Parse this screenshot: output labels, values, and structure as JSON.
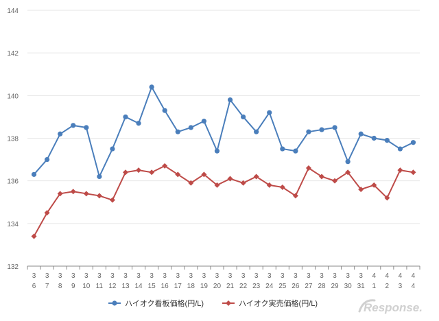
{
  "chart_data": {
    "type": "line",
    "title": "",
    "xlabel": "",
    "ylabel": "",
    "ylim": [
      132,
      144
    ],
    "yticks": [
      "132",
      "134",
      "136",
      "138",
      "140",
      "142",
      "144"
    ],
    "grid": "horizontal",
    "legend_position": "bottom",
    "categories": [
      {
        "month": "3",
        "day": "6"
      },
      {
        "month": "3",
        "day": "7"
      },
      {
        "month": "3",
        "day": "8"
      },
      {
        "month": "3",
        "day": "9"
      },
      {
        "month": "3",
        "day": "10"
      },
      {
        "month": "3",
        "day": "11"
      },
      {
        "month": "3",
        "day": "12"
      },
      {
        "month": "3",
        "day": "13"
      },
      {
        "month": "3",
        "day": "14"
      },
      {
        "month": "3",
        "day": "15"
      },
      {
        "month": "3",
        "day": "16"
      },
      {
        "month": "3",
        "day": "17"
      },
      {
        "month": "3",
        "day": "18"
      },
      {
        "month": "3",
        "day": "19"
      },
      {
        "month": "3",
        "day": "20"
      },
      {
        "month": "3",
        "day": "21"
      },
      {
        "month": "3",
        "day": "22"
      },
      {
        "month": "3",
        "day": "23"
      },
      {
        "month": "3",
        "day": "24"
      },
      {
        "month": "3",
        "day": "25"
      },
      {
        "month": "3",
        "day": "26"
      },
      {
        "month": "3",
        "day": "27"
      },
      {
        "month": "3",
        "day": "28"
      },
      {
        "month": "3",
        "day": "29"
      },
      {
        "month": "3",
        "day": "30"
      },
      {
        "month": "3",
        "day": "31"
      },
      {
        "month": "4",
        "day": "1"
      },
      {
        "month": "4",
        "day": "2"
      },
      {
        "month": "4",
        "day": "3"
      },
      {
        "month": "4",
        "day": "4"
      }
    ],
    "series": [
      {
        "name": "ハイオク看板価格(円/L)",
        "color": "#4a7ebb",
        "marker": "circle",
        "values": [
          136.3,
          137.0,
          138.2,
          138.6,
          138.5,
          136.2,
          137.5,
          139.0,
          138.7,
          140.4,
          139.3,
          138.3,
          138.5,
          138.8,
          137.4,
          139.8,
          139.0,
          138.3,
          139.2,
          137.5,
          137.4,
          138.3,
          138.4,
          138.5,
          136.9,
          138.2,
          138.0,
          137.9,
          137.5,
          137.8
        ]
      },
      {
        "name": "ハイオク実売価格(円/L)",
        "color": "#be4b48",
        "marker": "diamond",
        "values": [
          133.4,
          134.5,
          135.4,
          135.5,
          135.4,
          135.3,
          135.1,
          136.4,
          136.5,
          136.4,
          136.7,
          136.3,
          135.9,
          136.3,
          135.8,
          136.1,
          135.9,
          136.2,
          135.8,
          135.7,
          135.3,
          136.6,
          136.2,
          136.0,
          136.4,
          135.6,
          135.8,
          135.2,
          136.5,
          136.4
        ]
      }
    ]
  },
  "watermark": {
    "text": "Response.",
    "color": "#d0d0d0"
  }
}
